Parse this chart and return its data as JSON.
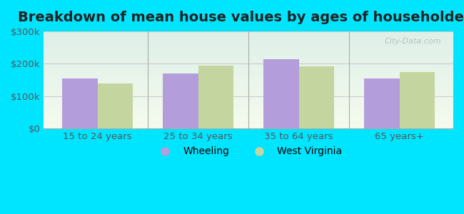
{
  "title": "Breakdown of mean house values by ages of householders",
  "categories": [
    "15 to 24 years",
    "25 to 34 years",
    "35 to 64 years",
    "65 years+"
  ],
  "wheeling_values": [
    155000,
    170000,
    215000,
    155000
  ],
  "wv_values": [
    140000,
    193000,
    192000,
    175000
  ],
  "wheeling_color": "#b39ddb",
  "wv_color": "#c5d5a0",
  "background_color": "#00e5ff",
  "ylim": [
    0,
    300000
  ],
  "yticks": [
    0,
    100000,
    200000,
    300000
  ],
  "ytick_labels": [
    "$0",
    "$100k",
    "$200k",
    "$300k"
  ],
  "legend_wheeling": "Wheeling",
  "legend_wv": "West Virginia",
  "watermark": "City-Data.com",
  "bar_width": 0.35,
  "title_fontsize": 14,
  "tick_fontsize": 9.5,
  "legend_fontsize": 10
}
